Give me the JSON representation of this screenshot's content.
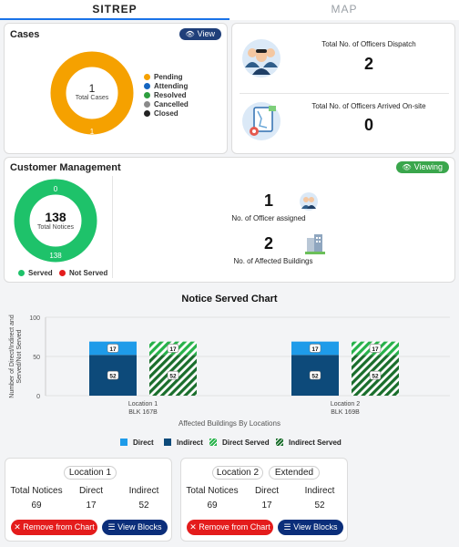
{
  "tabs": [
    {
      "label": "SITREP",
      "active": true
    },
    {
      "label": "MAP",
      "active": false
    }
  ],
  "cases": {
    "title": "Cases",
    "view_label": "View",
    "donut": {
      "value": "1",
      "label": "Total Cases",
      "segment_label": "1"
    },
    "legend": [
      {
        "label": "Pending",
        "color": "#f5a100"
      },
      {
        "label": "Attending",
        "color": "#1565c0"
      },
      {
        "label": "Resolved",
        "color": "#2e9e3f"
      },
      {
        "label": "Cancelled",
        "color": "#8a8a8a"
      },
      {
        "label": "Closed",
        "color": "#222222"
      }
    ],
    "colors": {
      "pending": "#f5a100",
      "view_pill": "#1f3f7a"
    }
  },
  "officers": {
    "dispatch": {
      "label": "Total No. of Officers Dispatch",
      "value": "2",
      "icon": "officers-group-icon"
    },
    "arrived": {
      "label": "Total No. of Officers Arrived On-site",
      "value": "0",
      "icon": "map-location-icon"
    }
  },
  "customer_management": {
    "title": "Customer Management",
    "viewing_label": "Viewing",
    "donut": {
      "value": "138",
      "label": "Total Notices",
      "top_label": "0",
      "bottom_label": "138"
    },
    "legend": [
      {
        "label": "Served",
        "color": "#1ec26a"
      },
      {
        "label": "Not Served",
        "color": "#e41c1c"
      }
    ],
    "officer_assigned": {
      "value": "1",
      "label": "No. of Officer assigned",
      "icon": "officer-assigned-icon"
    },
    "affected_buildings": {
      "value": "2",
      "label": "No. of Affected Buildings",
      "icon": "buildings-icon"
    },
    "colors": {
      "viewing_pill": "#3aa64c"
    }
  },
  "chart_title": "Notice Served Chart",
  "chart_data": {
    "type": "bar",
    "title": "Notice Served Chart",
    "xlabel": "Affected Buildings By Locations",
    "ylabel": "Number of Direct/Indirect and Served/Not Served",
    "ylim": [
      0,
      100
    ],
    "yticks": [
      "0",
      "50",
      "100"
    ],
    "categories": [
      {
        "line1": "Location 1",
        "line2": "BLK 167B"
      },
      {
        "line1": "Location 2",
        "line2": "BLK 169B"
      }
    ],
    "stacks": [
      {
        "name": "Direct/Indirect",
        "segments": [
          {
            "series": "Indirect",
            "values": [
              52,
              52
            ],
            "labels": [
              "52",
              "52"
            ]
          },
          {
            "series": "Direct",
            "values": [
              17,
              17
            ],
            "labels": [
              "17",
              "17"
            ]
          }
        ]
      },
      {
        "name": "Served",
        "segments": [
          {
            "series": "Indirect Served",
            "values": [
              52,
              52
            ],
            "labels": [
              "52",
              "52"
            ]
          },
          {
            "series": "Direct Served",
            "values": [
              17,
              17
            ],
            "labels": [
              "17",
              "17"
            ]
          }
        ]
      }
    ],
    "legend": [
      {
        "label": "Direct",
        "color": "#1e9be9",
        "pattern": "solid"
      },
      {
        "label": "Indirect",
        "color": "#0d4a7a",
        "pattern": "solid"
      },
      {
        "label": "Direct Served",
        "color": "#27b24a",
        "pattern": "hatch"
      },
      {
        "label": "Indirect Served",
        "color": "#1a6e2c",
        "pattern": "hatch"
      }
    ],
    "grid": true
  },
  "locations": [
    {
      "chips": [
        "Location 1"
      ],
      "headers": [
        "Total Notices",
        "Direct",
        "Indirect"
      ],
      "values": [
        "69",
        "17",
        "52"
      ],
      "remove_label": "Remove from Chart",
      "view_blocks_label": "View Blocks"
    },
    {
      "chips": [
        "Location 2",
        "Extended"
      ],
      "headers": [
        "Total Notices",
        "Direct",
        "Indirect"
      ],
      "values": [
        "69",
        "17",
        "52"
      ],
      "remove_label": "Remove from Chart",
      "view_blocks_label": "View Blocks"
    }
  ]
}
